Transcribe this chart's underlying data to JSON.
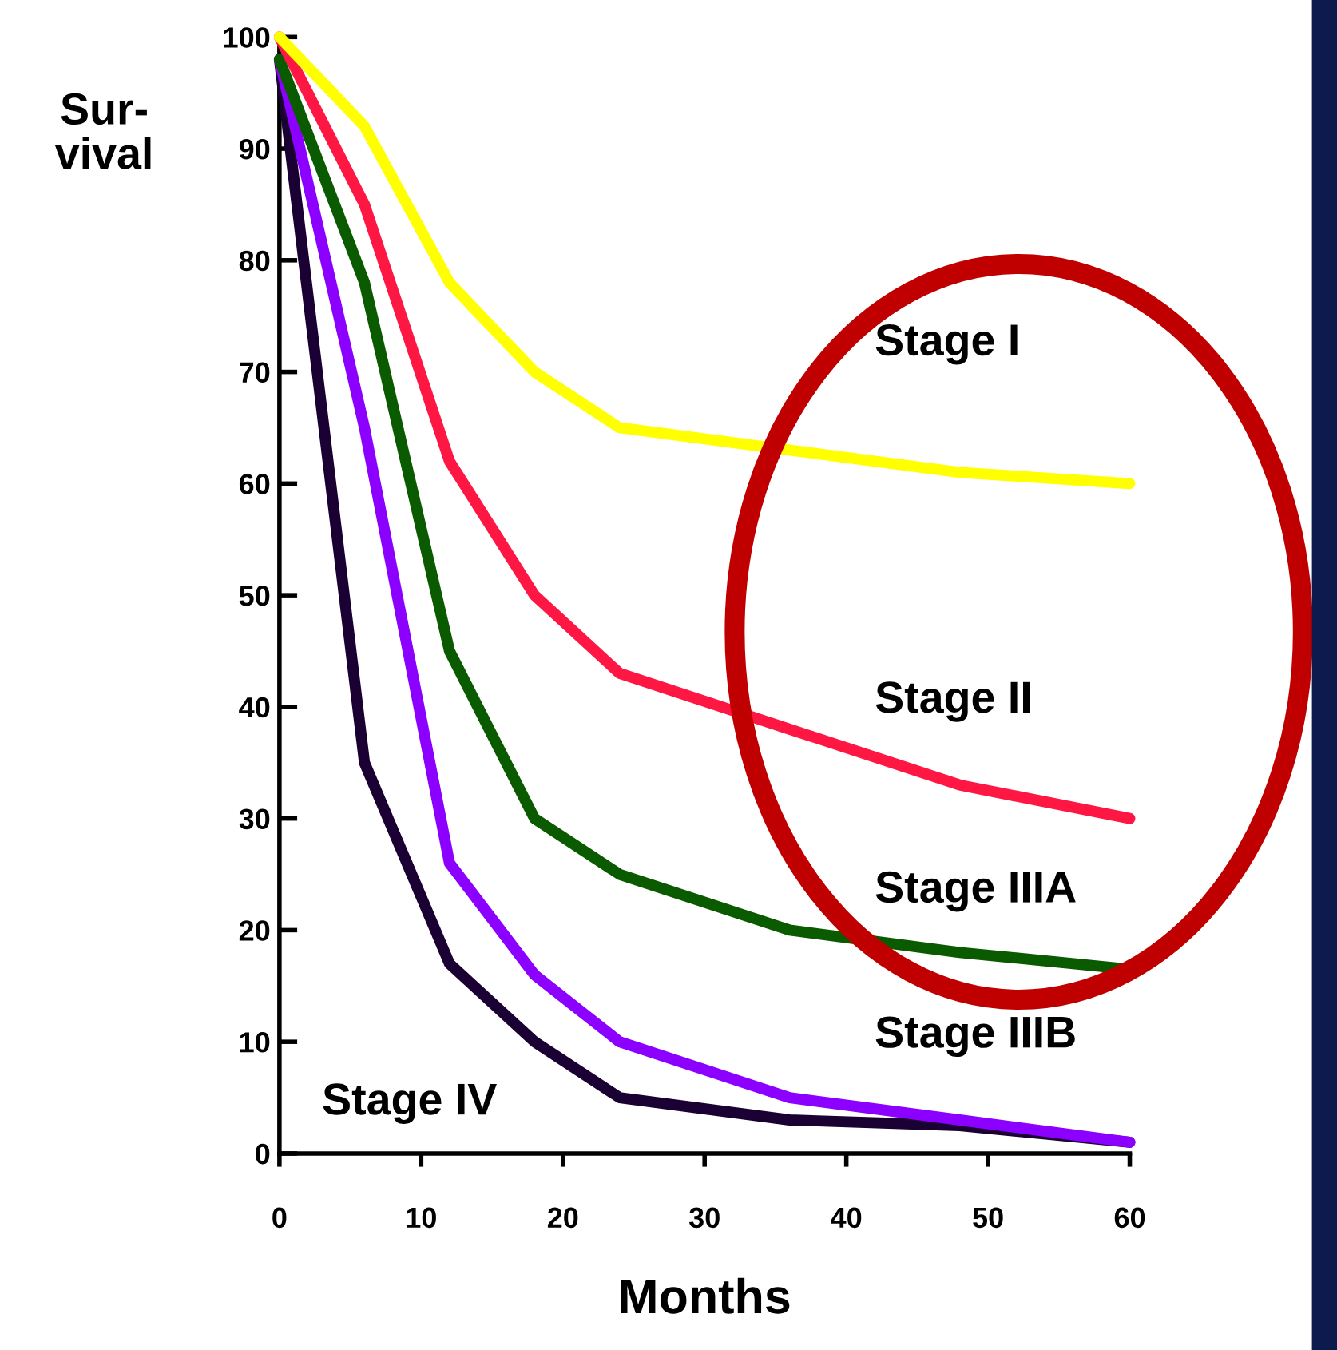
{
  "chart_data": {
    "type": "line",
    "xlabel": "Months",
    "ylabel": "Sur-\nvival",
    "xlim": [
      0,
      60
    ],
    "ylim": [
      0,
      100
    ],
    "xticks": [
      0,
      10,
      20,
      30,
      40,
      50,
      60
    ],
    "yticks": [
      0,
      10,
      20,
      30,
      40,
      50,
      60,
      70,
      80,
      90,
      100
    ],
    "x": [
      0,
      6,
      12,
      18,
      24,
      36,
      48,
      60
    ],
    "series": [
      {
        "name": "Stage I",
        "color": "#ffff00",
        "values": [
          100,
          92,
          78,
          70,
          65,
          63,
          61,
          60
        ]
      },
      {
        "name": "Stage II",
        "color": "#ff1744",
        "values": [
          100,
          85,
          62,
          50,
          43,
          38,
          33,
          30
        ]
      },
      {
        "name": "Stage IIIA",
        "color": "#0a5a00",
        "values": [
          98,
          78,
          45,
          30,
          25,
          20,
          18,
          16.5
        ]
      },
      {
        "name": "Stage IIIB",
        "color": "#8b00ff",
        "values": [
          98,
          65,
          26,
          16,
          10,
          5,
          3,
          1
        ]
      },
      {
        "name": "Stage IV",
        "color": "#1a0033",
        "values": [
          98,
          35,
          17,
          10,
          5,
          3,
          2.5,
          1
        ]
      }
    ]
  }
}
